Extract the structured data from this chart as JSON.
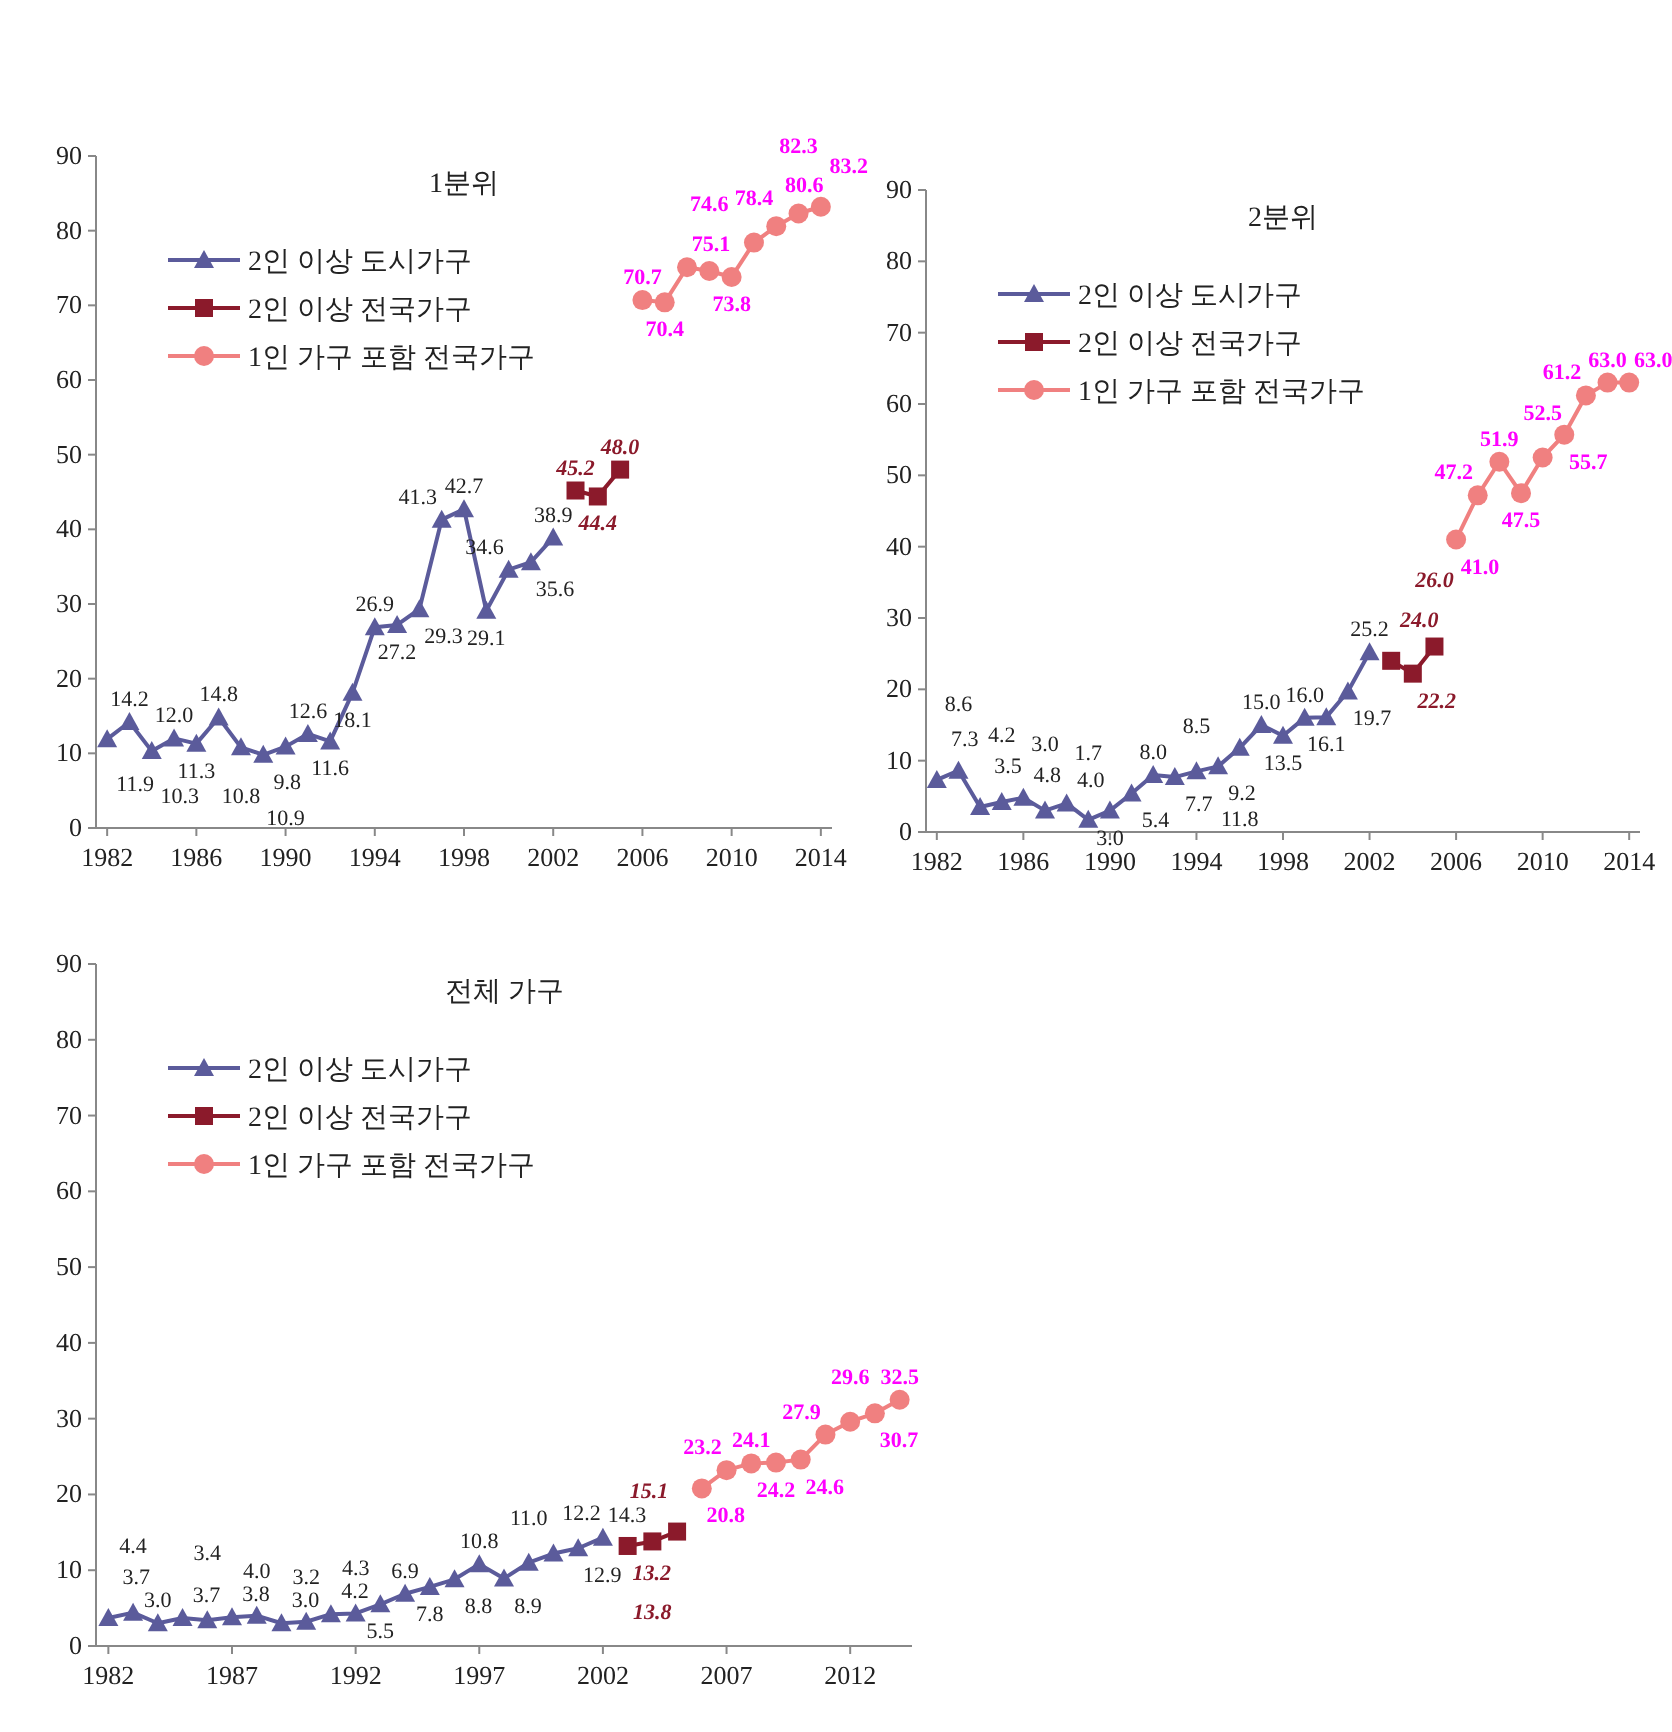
{
  "chart_data": [
    {
      "type": "line",
      "title": "1분위",
      "xlim": [
        1981.5,
        2014.5
      ],
      "xticks": [
        1982,
        1986,
        1990,
        1994,
        1998,
        2002,
        2006,
        2010,
        2014
      ],
      "ylim": [
        0,
        90
      ],
      "yticks": [
        0,
        10,
        20,
        30,
        40,
        50,
        60,
        70,
        80,
        90
      ],
      "legend": "top left",
      "series": [
        {
          "name": "2인 이상 도시가구",
          "color": "#5b5b9b",
          "marker": "triangle",
          "x": [
            1982,
            1983,
            1984,
            1985,
            1986,
            1987,
            1988,
            1989,
            1990,
            1991,
            1992,
            1993,
            1994,
            1995,
            1996,
            1997,
            1998,
            1999,
            2000,
            2001,
            2002
          ],
          "values": [
            11.9,
            14.2,
            10.3,
            12.0,
            11.3,
            14.8,
            10.8,
            9.8,
            10.9,
            12.6,
            11.6,
            18.1,
            26.9,
            27.2,
            29.3,
            41.3,
            42.7,
            29.1,
            34.6,
            35.6,
            38.9
          ],
          "value_labels": [
            "11.9",
            "14.2",
            "10.3",
            "12.0",
            "11.3",
            "14.8",
            "10.8",
            "9.8",
            "10.9",
            "12.6",
            "11.6",
            "18.1",
            "26.9",
            "27.2",
            "29.3",
            "41.3",
            "42.7",
            "29.1",
            "34.6",
            "35.6",
            "38.9"
          ]
        },
        {
          "name": "2인 이상 전국가구",
          "color": "#8b1a2b",
          "marker": "square",
          "x": [
            2003,
            2004,
            2005
          ],
          "values": [
            45.2,
            44.4,
            48.0
          ],
          "value_labels": [
            "45.2",
            "44.4",
            "48.0"
          ]
        },
        {
          "name": "1인 가구 포함 전국가구",
          "color": "#f08080",
          "marker": "circle",
          "x": [
            2006,
            2007,
            2008,
            2009,
            2010,
            2011,
            2012,
            2013,
            2014
          ],
          "values": [
            70.7,
            70.4,
            75.1,
            74.6,
            73.8,
            78.4,
            80.6,
            82.3,
            83.2
          ],
          "value_labels": [
            "70.7",
            "70.4",
            "75.1",
            "74.6",
            "73.8",
            "78.4",
            "80.6",
            "82.3",
            "83.2"
          ]
        }
      ]
    },
    {
      "type": "line",
      "title": "2분위",
      "xlim": [
        1981.5,
        2014.5
      ],
      "xticks": [
        1982,
        1986,
        1990,
        1994,
        1998,
        2002,
        2006,
        2010,
        2014
      ],
      "ylim": [
        0,
        90
      ],
      "yticks": [
        0,
        10,
        20,
        30,
        40,
        50,
        60,
        70,
        80,
        90
      ],
      "legend": "top left",
      "series": [
        {
          "name": "2인 이상 도시가구",
          "color": "#5b5b9b",
          "marker": "triangle",
          "x": [
            1982,
            1983,
            1984,
            1985,
            1986,
            1987,
            1988,
            1989,
            1990,
            1991,
            1992,
            1993,
            1994,
            1995,
            1996,
            1997,
            1998,
            1999,
            2000,
            2001,
            2002
          ],
          "values": [
            7.3,
            8.6,
            3.5,
            4.2,
            4.8,
            3.0,
            4.0,
            1.7,
            3.0,
            5.4,
            8.0,
            7.7,
            8.5,
            9.2,
            11.8,
            15.0,
            13.5,
            16.0,
            16.1,
            19.7,
            25.2
          ],
          "value_labels": [
            "7.3",
            "8.6",
            "3.5",
            "4.2",
            "4.8",
            "3.0",
            "4.0",
            "1.7",
            "3.0",
            "5.4",
            "8.0",
            "7.7",
            "8.5",
            "9.2",
            "11.8",
            "15.0",
            "13.5",
            "16.0",
            "16.1",
            "19.7",
            "25.2"
          ]
        },
        {
          "name": "2인 이상 전국가구",
          "color": "#8b1a2b",
          "marker": "square",
          "x": [
            2003,
            2004,
            2005
          ],
          "values": [
            24.0,
            22.2,
            26.0
          ],
          "value_labels": [
            "24.0",
            "22.2",
            "26.0"
          ]
        },
        {
          "name": "1인 가구 포함 전국가구",
          "color": "#f08080",
          "marker": "circle",
          "x": [
            2006,
            2007,
            2008,
            2009,
            2010,
            2011,
            2012,
            2013,
            2014
          ],
          "values": [
            41.0,
            47.2,
            51.9,
            47.5,
            52.5,
            55.7,
            61.2,
            63.0,
            63.0
          ],
          "value_labels": [
            "41.0",
            "47.2",
            "51.9",
            "47.5",
            "52.5",
            "55.7",
            "61.2",
            "63.0",
            "63.0"
          ]
        }
      ]
    },
    {
      "type": "line",
      "title": "전체 가구",
      "xlim": [
        1981.5,
        2014.5
      ],
      "xticks": [
        1982,
        1987,
        1992,
        1997,
        2002,
        2007,
        2012
      ],
      "ylim": [
        0,
        90
      ],
      "yticks": [
        0,
        10,
        20,
        30,
        40,
        50,
        60,
        70,
        80,
        90
      ],
      "legend": "top left",
      "series": [
        {
          "name": "2인 이상 도시가구",
          "color": "#5b5b9b",
          "marker": "triangle",
          "x": [
            1982,
            1983,
            1984,
            1985,
            1986,
            1987,
            1988,
            1989,
            1990,
            1991,
            1992,
            1993,
            1994,
            1995,
            1996,
            1997,
            1998,
            1999,
            2000,
            2001,
            2002
          ],
          "values": [
            3.7,
            4.4,
            3.0,
            3.7,
            3.4,
            3.8,
            4.0,
            3.0,
            3.2,
            4.2,
            4.3,
            5.5,
            6.9,
            7.8,
            8.8,
            10.8,
            8.9,
            11.0,
            12.2,
            12.9,
            14.3
          ],
          "value_labels": [
            "3.7",
            "4.4",
            "3.0",
            "3.7",
            "3.4",
            "3.8",
            "4.0",
            "3.0",
            "3.2",
            "4.2",
            "4.3",
            "5.5",
            "6.9",
            "7.8",
            "8.8",
            "10.8",
            "8.9",
            "11.0",
            "12.2",
            "12.9",
            "14.3"
          ]
        },
        {
          "name": "2인 이상 전국가구",
          "color": "#8b1a2b",
          "marker": "square",
          "x": [
            2003,
            2004,
            2005
          ],
          "values": [
            13.2,
            13.8,
            15.1
          ],
          "value_labels": [
            "13.2",
            "13.8",
            "15.1"
          ]
        },
        {
          "name": "1인 가구 포함 전국가구",
          "color": "#f08080",
          "marker": "circle",
          "x": [
            2006,
            2007,
            2008,
            2009,
            2010,
            2011,
            2012,
            2013,
            2014
          ],
          "values": [
            20.8,
            23.2,
            24.1,
            24.2,
            24.6,
            27.9,
            29.6,
            30.7,
            32.5
          ],
          "value_labels": [
            "20.8",
            "23.2",
            "24.1",
            "24.2",
            "24.6",
            "27.9",
            "29.6",
            "30.7",
            "32.5"
          ]
        }
      ]
    }
  ]
}
